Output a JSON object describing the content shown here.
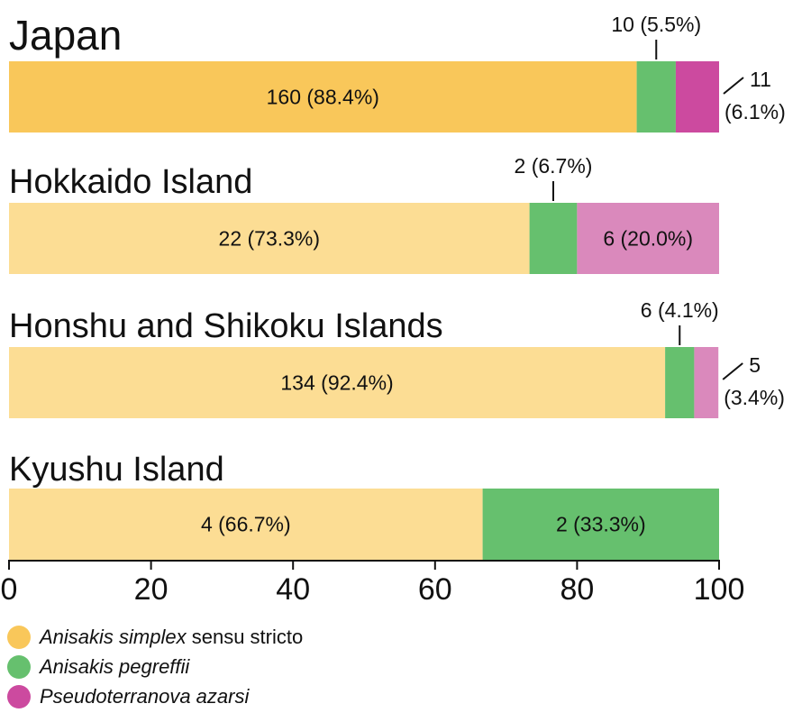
{
  "chart_data": {
    "type": "bar",
    "orientation": "horizontal",
    "stacked": true,
    "xlim": [
      0,
      100
    ],
    "x_ticks": [
      "0",
      "20",
      "40",
      "60",
      "80",
      "100"
    ],
    "grid": false,
    "legend_placement": "bottom-left",
    "series": [
      {
        "name_italic": "Anisakis simplex",
        "name_rest": " sensu stricto",
        "color": "#F9C75A",
        "color_light": "#FCDD94"
      },
      {
        "name_italic": "Anisakis pegreffii",
        "name_rest": "",
        "color": "#66C06E",
        "color_light": "#66C06E"
      },
      {
        "name_italic": "Pseudoterranova azarsi",
        "name_rest": "",
        "color": "#CC4A9F",
        "color_light": "#DA89BC"
      }
    ],
    "groups": [
      {
        "title": "Japan",
        "emphasis": true,
        "values": [
          88.4,
          5.5,
          6.1
        ],
        "labels": [
          "160 (88.4%)",
          "10 (5.5%)",
          "11 (6.1%)"
        ],
        "label_placement": [
          "inside",
          "above",
          "right"
        ]
      },
      {
        "title": "Hokkaido Island",
        "emphasis": false,
        "values": [
          73.3,
          6.7,
          20.0
        ],
        "labels": [
          "22 (73.3%)",
          "2 (6.7%)",
          "6 (20.0%)"
        ],
        "label_placement": [
          "inside",
          "above",
          "inside"
        ]
      },
      {
        "title": "Honshu and Shikoku Islands",
        "emphasis": false,
        "values": [
          92.4,
          4.1,
          3.4
        ],
        "labels": [
          "134 (92.4%)",
          "6 (4.1%)",
          "5 (3.4%)"
        ],
        "label_placement": [
          "inside",
          "above",
          "right"
        ]
      },
      {
        "title": "Kyushu Island",
        "emphasis": false,
        "values": [
          66.7,
          33.3,
          0
        ],
        "labels": [
          "4 (66.7%)",
          "2 (33.3%)",
          ""
        ],
        "label_placement": [
          "inside",
          "inside",
          "none"
        ]
      }
    ]
  }
}
